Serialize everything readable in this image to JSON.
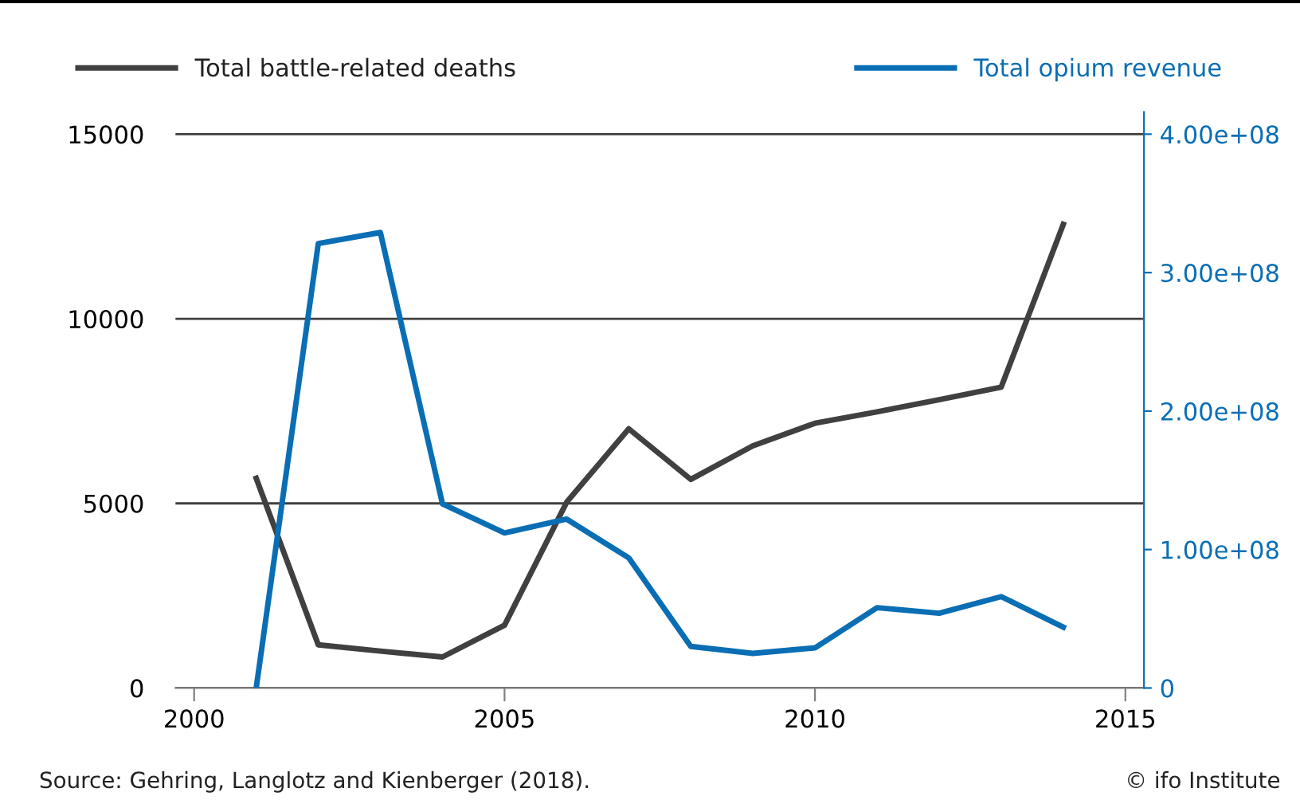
{
  "chart_data": {
    "type": "line",
    "x": [
      2001,
      2002,
      2003,
      2004,
      2005,
      2006,
      2007,
      2008,
      2009,
      2010,
      2011,
      2012,
      2013,
      2014
    ],
    "series": [
      {
        "name": "Total battle-related deaths",
        "color": "#404040",
        "values": [
          5680,
          1170,
          1000,
          840,
          1700,
          5030,
          7020,
          5650,
          6560,
          7170,
          7480,
          7810,
          8150,
          12560
        ]
      },
      {
        "name": "Total opium revenue",
        "color": "#0a6eb4",
        "axis": "y2",
        "values": [
          0,
          321000000,
          329000000,
          133000000,
          112000000,
          122000000,
          94000000,
          30000000,
          25000000,
          29000000,
          58000000,
          54000000,
          66000000,
          44000000
        ]
      }
    ],
    "xlim": [
      1999.7,
      2015.3
    ],
    "xticks": [
      2000,
      2005,
      2010,
      2015
    ],
    "ylim": [
      0,
      15600
    ],
    "yticks": [
      0,
      5000,
      10000,
      15000
    ],
    "y2lim": [
      0,
      416000000
    ],
    "y2ticks": [
      0,
      {
        "value": 100000000,
        "label": "1.00e+08"
      },
      {
        "value": 200000000,
        "label": "2.00e+08"
      },
      {
        "value": 300000000,
        "label": "3.00e+08"
      },
      {
        "value": 400000000,
        "label": "4.00e+08"
      }
    ],
    "grid": "y",
    "legend": "top",
    "marker": "none",
    "line_style": "solid",
    "annotations": [
      "Source: Gehring, Langlotz and Kienberger (2018).",
      "© ifo Institute"
    ]
  }
}
